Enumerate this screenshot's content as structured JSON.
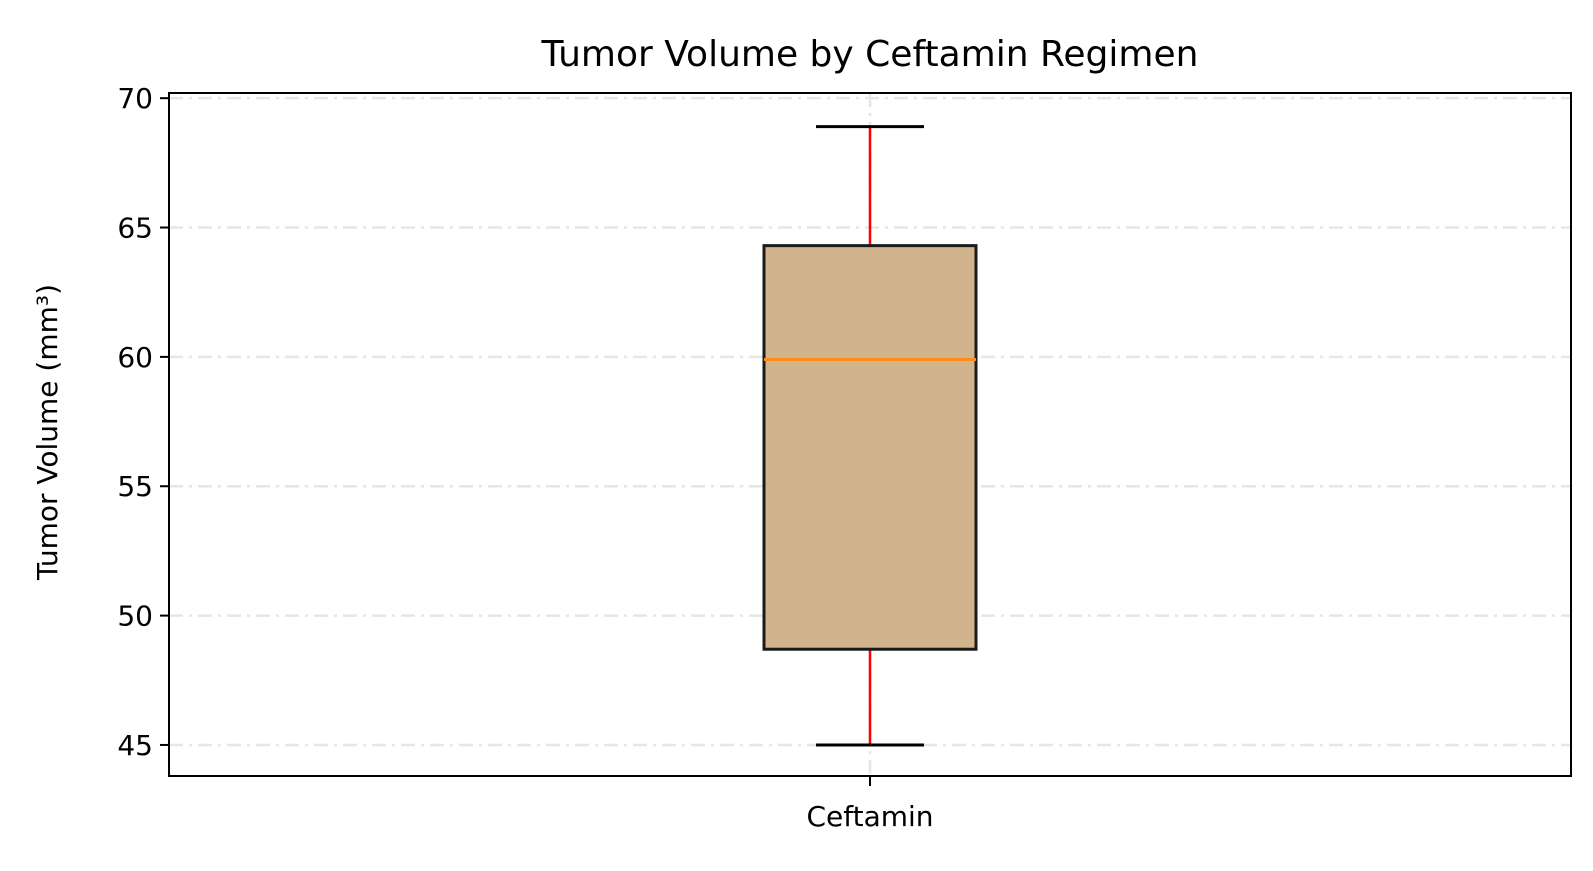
{
  "chart_data": {
    "type": "box",
    "title": "Tumor Volume by Ceftamin Regimen",
    "xlabel": "",
    "ylabel": "Tumor Volume (mm³)",
    "categories": [
      "Ceftamin"
    ],
    "boxes": [
      {
        "category": "Ceftamin",
        "whisker_low": 45.0,
        "q1": 48.7,
        "median": 59.9,
        "q3": 64.3,
        "whisker_high": 68.9
      }
    ],
    "ylim": [
      43.8,
      70.2
    ],
    "yticks": [
      45,
      50,
      55,
      60,
      65,
      70
    ],
    "grid": true,
    "colors": {
      "box_fill": "#d2b48c",
      "box_edge": "#1a1a1a",
      "median": "#ff8c1a",
      "whisker": "#ff0000",
      "cap": "#000000",
      "grid": "#e6e6e6"
    }
  }
}
